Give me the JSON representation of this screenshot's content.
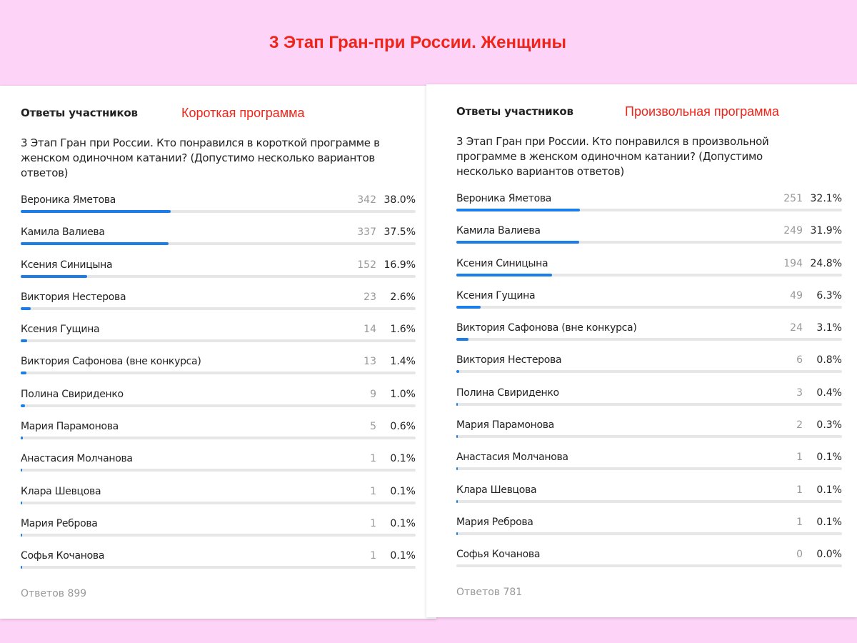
{
  "title": "3 Этап Гран-при России. Женщины",
  "panels": [
    {
      "header": "Ответы участников",
      "program": "Короткая программа",
      "question": "3 Этап Гран при России. Кто понравился в короткой программе в женском одиночном катании? (Допустимо несколько вариантов ответов)",
      "total": "Ответов 899",
      "rows": [
        {
          "name": "Вероника Яметова",
          "count": "342",
          "percent": "38.0%",
          "share": 0.38
        },
        {
          "name": "Камила Валиева",
          "count": "337",
          "percent": "37.5%",
          "share": 0.375
        },
        {
          "name": "Ксения Синицына",
          "count": "152",
          "percent": "16.9%",
          "share": 0.169
        },
        {
          "name": "Виктория Нестерова",
          "count": "23",
          "percent": "2.6%",
          "share": 0.026
        },
        {
          "name": "Ксения Гущина",
          "count": "14",
          "percent": "1.6%",
          "share": 0.016
        },
        {
          "name": "Виктория Сафонова (вне конкурса)",
          "count": "13",
          "percent": "1.4%",
          "share": 0.014
        },
        {
          "name": "Полина Свириденко",
          "count": "9",
          "percent": "1.0%",
          "share": 0.01
        },
        {
          "name": "Мария Парамонова",
          "count": "5",
          "percent": "0.6%",
          "share": 0.006
        },
        {
          "name": "Анастасия Молчанова",
          "count": "1",
          "percent": "0.1%",
          "share": 0.001
        },
        {
          "name": "Клара Шевцова",
          "count": "1",
          "percent": "0.1%",
          "share": 0.001
        },
        {
          "name": "Мария Реброва",
          "count": "1",
          "percent": "0.1%",
          "share": 0.001
        },
        {
          "name": "Софья Кочанова",
          "count": "1",
          "percent": "0.1%",
          "share": 0.001
        }
      ]
    },
    {
      "header": "Ответы участников",
      "program": "Произвольная программа",
      "question": "3 Этап Гран при России. Кто понравился в произвольной программе в женском одиночном катании? (Допустимо несколько вариантов ответов)",
      "total": "Ответов 781",
      "rows": [
        {
          "name": "Вероника Яметова",
          "count": "251",
          "percent": "32.1%",
          "share": 0.321
        },
        {
          "name": "Камила Валиева",
          "count": "249",
          "percent": "31.9%",
          "share": 0.319
        },
        {
          "name": "Ксения Синицына",
          "count": "194",
          "percent": "24.8%",
          "share": 0.248
        },
        {
          "name": "Ксения Гущина",
          "count": "49",
          "percent": "6.3%",
          "share": 0.063
        },
        {
          "name": "Виктория Сафонова (вне конкурса)",
          "count": "24",
          "percent": "3.1%",
          "share": 0.031
        },
        {
          "name": "Виктория Нестерова",
          "count": "6",
          "percent": "0.8%",
          "share": 0.008
        },
        {
          "name": "Полина Свириденко",
          "count": "3",
          "percent": "0.4%",
          "share": 0.004
        },
        {
          "name": "Мария Парамонова",
          "count": "2",
          "percent": "0.3%",
          "share": 0.003
        },
        {
          "name": "Анастасия Молчанова",
          "count": "1",
          "percent": "0.1%",
          "share": 0.001
        },
        {
          "name": "Клара Шевцова",
          "count": "1",
          "percent": "0.1%",
          "share": 0.001
        },
        {
          "name": "Мария Реброва",
          "count": "1",
          "percent": "0.1%",
          "share": 0.001
        },
        {
          "name": "Софья Кочанова",
          "count": "0",
          "percent": "0.0%",
          "share": 0.0
        }
      ]
    }
  ],
  "colors": {
    "background": "#fdd3f7",
    "accent_red": "#f1241a",
    "bar_fill": "#1a7de8",
    "bar_track": "#e6e6e6"
  }
}
